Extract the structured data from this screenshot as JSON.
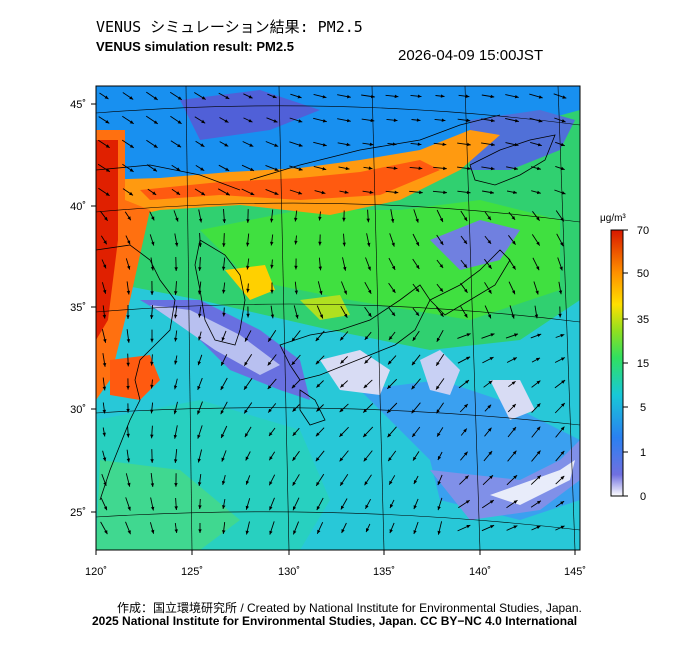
{
  "title_jp": "VENUS シミュレーション結果: PM2.5",
  "title_en": "VENUS simulation result: PM2.5",
  "timestamp": "2026-04-09 15:00JST",
  "axes": {
    "lon_ticks": [
      "120˚",
      "125˚",
      "130˚",
      "135˚",
      "140˚",
      "145˚"
    ],
    "lat_ticks": [
      "45˚",
      "40˚",
      "35˚",
      "30˚",
      "25˚"
    ]
  },
  "colorbar": {
    "unit_label": "μg/m³",
    "ticks": [
      "70",
      "50",
      "35",
      "15",
      "5",
      "1",
      "0"
    ],
    "colors": [
      "#ffffff",
      "#3a50d8",
      "#1aa0f0",
      "#30e0c0",
      "#3ce030",
      "#a8e010",
      "#ffe000",
      "#ff9000",
      "#e42000"
    ]
  },
  "credit_line1": "作成：国立環境研究所 / Created by National Institute for Environmental Studies, Japan.",
  "credit_line2": "2025 National Institute for Environmental Studies, Japan. CC BY−NC 4.0 International"
}
